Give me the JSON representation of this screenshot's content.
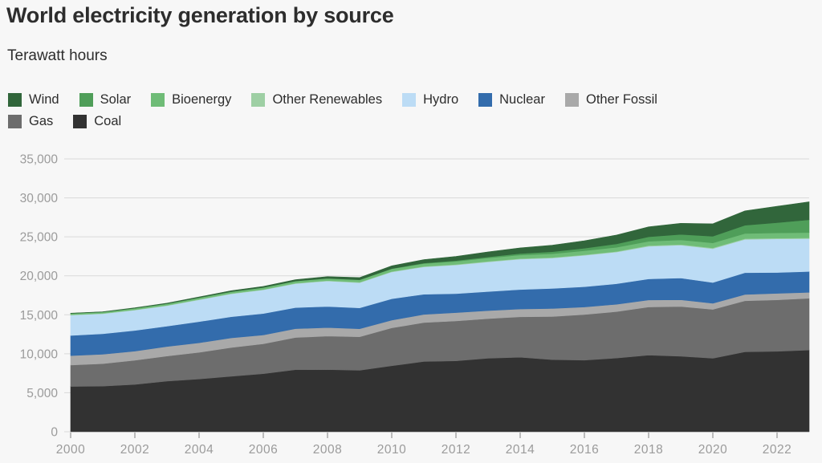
{
  "header": {
    "title": "World electricity generation by source",
    "subtitle": "Terawatt hours"
  },
  "colors": {
    "background": "#f7f7f7",
    "gridline": "#d9d9d9",
    "axis_text": "#9b9b9b",
    "tick_mark": "#a8a8a8",
    "heading_text": "#2d2d2d"
  },
  "chart_data": {
    "type": "area",
    "stacked": true,
    "title": "World electricity generation by source",
    "subtitle": "Terawatt hours",
    "xlabel": "",
    "ylabel": "Terawatt hours",
    "ylim": [
      0,
      35000
    ],
    "yticks": [
      0,
      5000,
      10000,
      15000,
      20000,
      25000,
      30000,
      35000
    ],
    "xticks": [
      2000,
      2002,
      2004,
      2006,
      2008,
      2010,
      2012,
      2014,
      2016,
      2018,
      2020,
      2022
    ],
    "grid": true,
    "legend_position": "top",
    "x": [
      2000,
      2001,
      2002,
      2003,
      2004,
      2005,
      2006,
      2007,
      2008,
      2009,
      2010,
      2011,
      2012,
      2013,
      2014,
      2015,
      2016,
      2017,
      2018,
      2019,
      2020,
      2021,
      2022,
      2023
    ],
    "series": [
      {
        "name": "Coal",
        "color": "#323232",
        "values": [
          5809,
          5845,
          6064,
          6485,
          6764,
          7112,
          7443,
          7958,
          7968,
          7886,
          8463,
          9010,
          9091,
          9430,
          9550,
          9240,
          9180,
          9450,
          9820,
          9690,
          9420,
          10244,
          10317,
          10480
        ]
      },
      {
        "name": "Gas",
        "color": "#6d6d6d",
        "values": [
          2741,
          2886,
          3093,
          3225,
          3419,
          3689,
          3830,
          4127,
          4301,
          4292,
          4853,
          4986,
          5110,
          5070,
          5190,
          5543,
          5850,
          5960,
          6180,
          6380,
          6270,
          6552,
          6600,
          6634
        ]
      },
      {
        "name": "Other Fossil",
        "color": "#a9a9a9",
        "values": [
          1211,
          1204,
          1181,
          1220,
          1222,
          1232,
          1146,
          1135,
          1094,
          1030,
          993,
          1058,
          1080,
          1030,
          1000,
          1028,
          970,
          940,
          900,
          850,
          780,
          810,
          830,
          762
        ]
      },
      {
        "name": "Nuclear",
        "color": "#336cac",
        "values": [
          2581,
          2637,
          2654,
          2610,
          2722,
          2722,
          2747,
          2703,
          2706,
          2671,
          2744,
          2580,
          2440,
          2457,
          2498,
          2571,
          2605,
          2634,
          2700,
          2790,
          2670,
          2800,
          2680,
          2686
        ]
      },
      {
        "name": "Hydro",
        "color": "#bcdcf5",
        "values": [
          2613,
          2560,
          2607,
          2632,
          2800,
          2934,
          3030,
          3078,
          3260,
          3240,
          3445,
          3510,
          3670,
          3800,
          3900,
          3892,
          4020,
          4060,
          4190,
          4220,
          4342,
          4270,
          4310,
          4210
        ]
      },
      {
        "name": "Other Renewables",
        "color": "#9ecfa4",
        "values": [
          52,
          53,
          55,
          56,
          58,
          58,
          60,
          62,
          65,
          68,
          68,
          72,
          75,
          78,
          80,
          80,
          84,
          88,
          92,
          96,
          100,
          100,
          100,
          101
        ]
      },
      {
        "name": "Bioenergy",
        "color": "#6fbc77",
        "values": [
          164,
          170,
          185,
          200,
          215,
          227,
          245,
          260,
          275,
          290,
          331,
          360,
          390,
          420,
          450,
          481,
          500,
          520,
          550,
          580,
          640,
          660,
          670,
          680
        ]
      },
      {
        "name": "Solar",
        "color": "#4f9e59",
        "values": [
          1,
          1,
          2,
          2,
          3,
          4,
          5,
          7,
          12,
          20,
          32,
          63,
          97,
          135,
          197,
          256,
          329,
          444,
          574,
          705,
          853,
          1055,
          1310,
          1631
        ]
      },
      {
        "name": "Wind",
        "color": "#31663b",
        "values": [
          31,
          38,
          52,
          63,
          85,
          104,
          133,
          171,
          221,
          276,
          346,
          437,
          526,
          646,
          717,
          831,
          957,
          1136,
          1270,
          1420,
          1596,
          1840,
          2100,
          2304
        ]
      }
    ],
    "legend_rows": [
      [
        "Wind",
        "Solar",
        "Bioenergy",
        "Other Renewables",
        "Hydro",
        "Nuclear",
        "Other Fossil"
      ],
      [
        "Gas",
        "Coal"
      ]
    ]
  }
}
